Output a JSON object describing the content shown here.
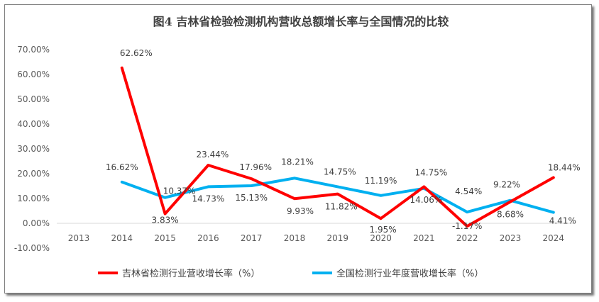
{
  "chart_data": {
    "type": "line",
    "title": "图4  吉林省检验检测机构营收总额增长率与全国情况的比较",
    "categories": [
      "2013",
      "2014",
      "2015",
      "2016",
      "2017",
      "2018",
      "2019",
      "2020",
      "2021",
      "2022",
      "2023",
      "2024"
    ],
    "y_ticks": [
      "70.00%",
      "60.00%",
      "50.00%",
      "40.00%",
      "30.00%",
      "20.00%",
      "10.00%",
      "0.00%",
      "-10.00%"
    ],
    "ylim": [
      -10,
      70
    ],
    "series": [
      {
        "name": "吉林省检测行业营收增长率（%）",
        "color": "#ff0000",
        "values": [
          null,
          62.62,
          3.83,
          23.44,
          17.96,
          9.93,
          11.82,
          1.95,
          14.75,
          -1.17,
          8.68,
          18.44
        ],
        "labels": [
          "",
          "62.62%",
          "3.83%",
          "23.44%",
          "17.96%",
          "9.93%",
          "11.82%",
          "1.95%",
          "14.75%",
          "-1.17%",
          "8.68%",
          "18.44%"
        ]
      },
      {
        "name": "全国检测行业年度营收增长率（%）",
        "color": "#00b0f0",
        "values": [
          null,
          16.62,
          10.37,
          14.73,
          15.13,
          18.21,
          14.75,
          11.19,
          14.06,
          4.54,
          9.22,
          4.41
        ],
        "labels": [
          "",
          "16.62%",
          "10.37%",
          "14.73%",
          "15.13%",
          "18.21%",
          "14.75%",
          "11.19%",
          "14.06%",
          "4.54%",
          "9.22%",
          "4.41%"
        ]
      }
    ]
  }
}
